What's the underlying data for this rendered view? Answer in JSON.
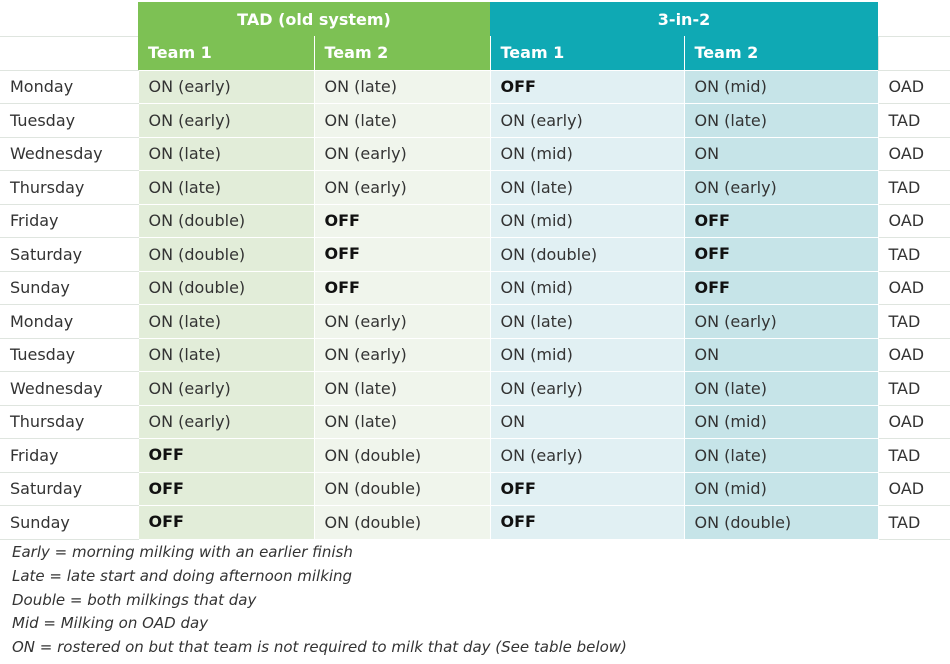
{
  "header": {
    "old_system": "TAD (old system)",
    "new_system": "3-in-2",
    "team1": "Team 1",
    "team2": "Team 2"
  },
  "rows": [
    {
      "day": "Monday",
      "old_t1": "ON (early)",
      "old_t2": "ON (late)",
      "new_t1": "OFF",
      "new_t2": "ON (mid)",
      "mode": "OAD"
    },
    {
      "day": "Tuesday",
      "old_t1": "ON (early)",
      "old_t2": "ON (late)",
      "new_t1": "ON (early)",
      "new_t2": "ON (late)",
      "mode": "TAD"
    },
    {
      "day": "Wednesday",
      "old_t1": "ON (late)",
      "old_t2": "ON (early)",
      "new_t1": "ON (mid)",
      "new_t2": "ON",
      "mode": "OAD"
    },
    {
      "day": "Thursday",
      "old_t1": "ON (late)",
      "old_t2": "ON (early)",
      "new_t1": "ON (late)",
      "new_t2": "ON (early)",
      "mode": "TAD"
    },
    {
      "day": "Friday",
      "old_t1": "ON (double)",
      "old_t2": "OFF",
      "new_t1": "ON (mid)",
      "new_t2": "OFF",
      "mode": "OAD"
    },
    {
      "day": "Saturday",
      "old_t1": "ON (double)",
      "old_t2": "OFF",
      "new_t1": "ON (double)",
      "new_t2": "OFF",
      "mode": "TAD"
    },
    {
      "day": "Sunday",
      "old_t1": "ON (double)",
      "old_t2": "OFF",
      "new_t1": "ON (mid)",
      "new_t2": "OFF",
      "mode": "OAD"
    },
    {
      "day": "Monday",
      "old_t1": "ON (late)",
      "old_t2": "ON (early)",
      "new_t1": "ON (late)",
      "new_t2": "ON (early)",
      "mode": "TAD"
    },
    {
      "day": "Tuesday",
      "old_t1": "ON (late)",
      "old_t2": "ON (early)",
      "new_t1": "ON (mid)",
      "new_t2": "ON",
      "mode": "OAD"
    },
    {
      "day": "Wednesday",
      "old_t1": "ON (early)",
      "old_t2": "ON (late)",
      "new_t1": "ON (early)",
      "new_t2": "ON (late)",
      "mode": "TAD"
    },
    {
      "day": "Thursday",
      "old_t1": "ON (early)",
      "old_t2": "ON (late)",
      "new_t1": "ON",
      "new_t2": "ON (mid)",
      "mode": "OAD"
    },
    {
      "day": "Friday",
      "old_t1": "OFF",
      "old_t2": "ON (double)",
      "new_t1": "ON (early)",
      "new_t2": "ON (late)",
      "mode": "TAD"
    },
    {
      "day": "Saturday",
      "old_t1": "OFF",
      "old_t2": "ON (double)",
      "new_t1": "OFF",
      "new_t2": "ON (mid)",
      "mode": "OAD"
    },
    {
      "day": "Sunday",
      "old_t1": "OFF",
      "old_t2": "ON (double)",
      "new_t1": "OFF",
      "new_t2": "ON (double)",
      "mode": "TAD"
    }
  ],
  "notes": [
    "Early = morning milking with an earlier finish",
    "Late = late start and doing afternoon milking",
    "Double = both milkings that day",
    "Mid = Milking on OAD day",
    "ON = rostered on but that team is not required to milk that day (See table below)"
  ],
  "colors": {
    "old_header": "#7dc154",
    "new_header": "#0fa9b4",
    "old_shade_dark": "#e2edd9",
    "old_shade_light": "#f0f5ec",
    "new_shade_dark": "#c6e4e8",
    "new_shade_light": "#e1f0f3"
  }
}
